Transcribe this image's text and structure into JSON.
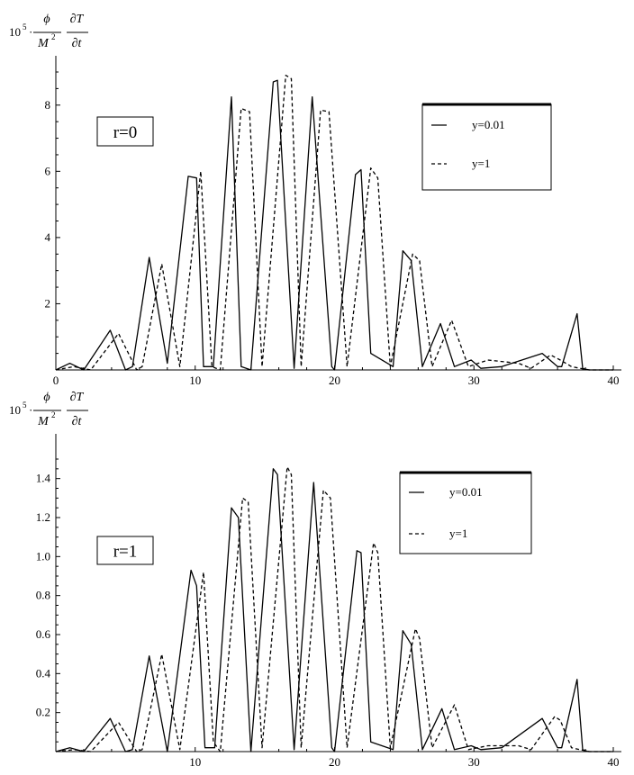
{
  "chart_data": [
    {
      "type": "line",
      "ylabel": {
        "prefix": "10",
        "exp": "5",
        "dot": "·",
        "frac1_num": "ϕ",
        "frac1_den": "M",
        "frac1_den_exp": "2",
        "frac2_num": "∂T",
        "frac2_den": "∂t"
      },
      "xlim": [
        0,
        40
      ],
      "ylim": [
        0,
        9
      ],
      "xticks": [
        0,
        10,
        20,
        30,
        40
      ],
      "xtick_labels": [
        "0",
        "10",
        "20",
        "30",
        "40"
      ],
      "yticks": [
        2,
        4,
        6,
        8
      ],
      "ytick_labels": [
        "2",
        "4",
        "6",
        "8"
      ],
      "annotation": "r=0",
      "legend": {
        "position": "top-right",
        "solid_label": "y=0.01",
        "dashed_label": "y=1"
      },
      "series": [
        {
          "name": "y=0.01",
          "style": "solid",
          "color": "#000000",
          "x": [
            0,
            1,
            2,
            3.9,
            5,
            5.5,
            6.7,
            8,
            9.5,
            10.1,
            10.6,
            11.3,
            12.6,
            13.3,
            14,
            15.6,
            15.9,
            17.1,
            18.4,
            19.8,
            20,
            21.5,
            21.9,
            22.6,
            24.2,
            24.9,
            25.5,
            26.3,
            27.6,
            28.6,
            29.8,
            30.5,
            32,
            34.9,
            36,
            36.3,
            37.4,
            37.8,
            38.2,
            40
          ],
          "y": [
            0,
            0.2,
            0,
            1.2,
            0,
            0.1,
            3.4,
            0.2,
            5.85,
            5.8,
            0.1,
            0.1,
            8.25,
            0.1,
            0,
            8.7,
            8.75,
            0.05,
            8.25,
            0.1,
            0,
            5.9,
            6.05,
            0.5,
            0.1,
            3.6,
            3.3,
            0.1,
            1.4,
            0.1,
            0.3,
            0.05,
            0.1,
            0.5,
            0.1,
            0.1,
            1.7,
            0.05,
            0,
            0
          ]
        },
        {
          "name": "y=1",
          "style": "dashed",
          "color": "#000000",
          "x": [
            0,
            1.3,
            2.5,
            4.5,
            5.8,
            6.2,
            7.6,
            8.9,
            10.4,
            11.2,
            11.8,
            13.3,
            13.9,
            14.8,
            16.5,
            16.9,
            17.6,
            19,
            19.6,
            20.9,
            22.6,
            23.1,
            24,
            25.6,
            26.1,
            27,
            28.4,
            29.6,
            31,
            33.2,
            34.1,
            35.5,
            36.2,
            37,
            37.6,
            38.3,
            40
          ],
          "y": [
            0,
            0.1,
            0,
            1.1,
            0,
            0.1,
            3.2,
            0.1,
            6.0,
            0.1,
            0,
            7.9,
            7.8,
            0.1,
            8.9,
            8.8,
            0.1,
            7.85,
            7.8,
            0.1,
            6.1,
            5.8,
            0.1,
            3.5,
            3.3,
            0.1,
            1.5,
            0.1,
            0.3,
            0.2,
            0.05,
            0.45,
            0.3,
            0.1,
            0.05,
            0,
            0
          ]
        }
      ]
    },
    {
      "type": "line",
      "ylabel": {
        "prefix": "10",
        "exp": "5",
        "dot": "·",
        "frac1_num": "ϕ",
        "frac1_den": "M",
        "frac1_den_exp": "2",
        "frac2_num": "∂T",
        "frac2_den": "∂t"
      },
      "xlim": [
        0,
        40
      ],
      "ylim": [
        0,
        1.5
      ],
      "xticks": [
        10,
        20,
        30,
        40
      ],
      "xtick_labels": [
        "10",
        "20",
        "30",
        "40"
      ],
      "yticks": [
        0.2,
        0.4,
        0.6,
        0.8,
        1.0,
        1.2,
        1.4
      ],
      "ytick_labels": [
        "0.2",
        "0.4",
        "0.6",
        "0.8",
        "1.0",
        "1.2",
        "1.4"
      ],
      "annotation": "r=1",
      "legend": {
        "position": "top-right",
        "solid_label": "y=0.01",
        "dashed_label": "y=1"
      },
      "series": [
        {
          "name": "y=0.01",
          "style": "solid",
          "color": "#000000",
          "x": [
            0,
            1,
            2,
            3.9,
            5,
            5.5,
            6.7,
            8,
            9.7,
            10.1,
            10.7,
            11.4,
            12.6,
            13.1,
            14,
            15.6,
            15.9,
            17.1,
            18.5,
            19.8,
            20,
            21.6,
            21.9,
            22.6,
            24.2,
            24.9,
            25.5,
            26.3,
            27.7,
            28.6,
            29.8,
            30.5,
            32,
            34.9,
            36,
            36.3,
            37.4,
            37.8,
            38.2,
            40
          ],
          "y": [
            0,
            0.02,
            0,
            0.17,
            0,
            0.01,
            0.49,
            0,
            0.93,
            0.85,
            0.02,
            0.02,
            1.25,
            1.2,
            0,
            1.45,
            1.42,
            0.01,
            1.38,
            0.02,
            0,
            1.03,
            1.02,
            0.05,
            0.01,
            0.62,
            0.55,
            0.01,
            0.22,
            0.01,
            0.03,
            0.01,
            0.02,
            0.17,
            0.02,
            0.02,
            0.37,
            0.01,
            0,
            0
          ]
        },
        {
          "name": "y=1",
          "style": "dashed",
          "color": "#000000",
          "x": [
            0,
            1.3,
            2.5,
            4.5,
            5.8,
            6.2,
            7.6,
            8.9,
            10.6,
            11.3,
            11.8,
            13.4,
            13.8,
            14.8,
            16.6,
            16.9,
            17.6,
            19.2,
            19.7,
            20.9,
            22.8,
            23.1,
            24,
            25.8,
            26.1,
            27,
            28.6,
            29.6,
            31,
            33.2,
            34.1,
            35.8,
            36.2,
            37,
            37.6,
            38.3,
            40
          ],
          "y": [
            0,
            0.01,
            0,
            0.15,
            0,
            0.01,
            0.5,
            0.01,
            0.92,
            0.05,
            0,
            1.3,
            1.28,
            0.02,
            1.46,
            1.42,
            0.02,
            1.34,
            1.3,
            0.02,
            1.07,
            1.02,
            0.02,
            0.63,
            0.58,
            0.02,
            0.24,
            0.01,
            0.03,
            0.03,
            0.01,
            0.18,
            0.16,
            0.02,
            0.01,
            0,
            0
          ]
        }
      ]
    }
  ]
}
